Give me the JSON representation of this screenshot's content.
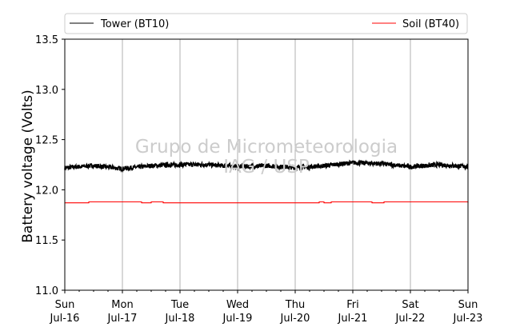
{
  "chart_data": {
    "type": "line",
    "ylabel": "Battery voltage (Volts)",
    "ylim": [
      11.0,
      13.5
    ],
    "yticks": [
      11.0,
      11.5,
      12.0,
      12.5,
      13.0,
      13.5
    ],
    "ytick_labels": [
      "11.0",
      "11.5",
      "12.0",
      "12.5",
      "13.0",
      "13.5"
    ],
    "xlim": [
      "2017-07-16",
      "2017-07-23"
    ],
    "xticks": [
      {
        "day": "Sun",
        "date": "Jul-16"
      },
      {
        "day": "Mon",
        "date": "Jul-17"
      },
      {
        "day": "Tue",
        "date": "Jul-18"
      },
      {
        "day": "Wed",
        "date": "Jul-19"
      },
      {
        "day": "Thu",
        "date": "Jul-20"
      },
      {
        "day": "Fri",
        "date": "Jul-21"
      },
      {
        "day": "Sat",
        "date": "Jul-22"
      },
      {
        "day": "Sun",
        "date": "Jul-23"
      }
    ],
    "grid": "vertical",
    "legend_position": "top, outside plot",
    "watermark": [
      "Grupo de Micrometeorologia",
      "IAG / USP"
    ],
    "series": [
      {
        "name": "Tower (BT10)",
        "color": "#000000",
        "noisy": true,
        "x": [
          "2017-07-16 00:00",
          "2017-07-16 12:00",
          "2017-07-17 00:00",
          "2017-07-17 12:00",
          "2017-07-18 00:00",
          "2017-07-18 12:00",
          "2017-07-19 00:00",
          "2017-07-19 12:00",
          "2017-07-20 00:00",
          "2017-07-20 12:00",
          "2017-07-21 00:00",
          "2017-07-21 12:00",
          "2017-07-22 00:00",
          "2017-07-22 12:00",
          "2017-07-23 00:00"
        ],
        "y": [
          12.22,
          12.24,
          12.21,
          12.24,
          12.25,
          12.25,
          12.23,
          12.24,
          12.22,
          12.24,
          12.27,
          12.26,
          12.23,
          12.25,
          12.23
        ]
      },
      {
        "name": "Soil (BT40)",
        "color": "#ff0000",
        "noisy": false,
        "x": [
          "2017-07-16 00:00",
          "2017-07-16 08:00",
          "2017-07-16 10:00",
          "2017-07-17 08:00",
          "2017-07-17 12:00",
          "2017-07-17 17:00",
          "2017-07-20 08:00",
          "2017-07-20 10:00",
          "2017-07-20 12:00",
          "2017-07-20 15:00",
          "2017-07-21 08:00",
          "2017-07-21 13:00",
          "2017-07-23 00:00"
        ],
        "y": [
          11.87,
          11.87,
          11.88,
          11.87,
          11.88,
          11.87,
          11.87,
          11.88,
          11.87,
          11.88,
          11.87,
          11.88,
          11.87
        ]
      }
    ]
  }
}
